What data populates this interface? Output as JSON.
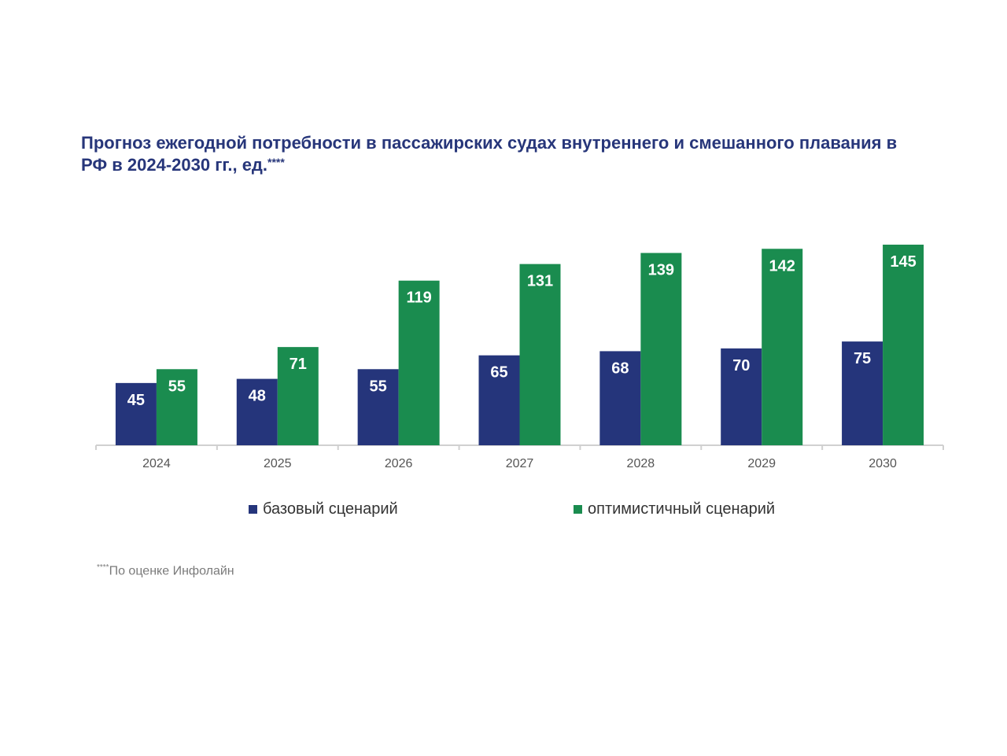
{
  "title": {
    "text": "Прогноз ежегодной потребности в пассажирских судах внутреннего и смешанного плавания в РФ в 2024-2030 гг., ед.",
    "marker": "****"
  },
  "footnote": {
    "marker": "****",
    "text": "По оценке Инфолайн"
  },
  "colors": {
    "base": "#25357b",
    "optimistic": "#1a8c4f",
    "axis": "#d0d0d0",
    "title": "#27367a"
  },
  "chart_data": {
    "type": "bar",
    "title": "Прогноз ежегодной потребности в пассажирских судах внутреннего и смешанного плавания в РФ в 2024-2030 гг., ед.****",
    "xlabel": "",
    "ylabel": "",
    "categories": [
      "2024",
      "2025",
      "2026",
      "2027",
      "2028",
      "2029",
      "2030"
    ],
    "series": [
      {
        "name": "базовый сценарий",
        "color": "#25357b",
        "values": [
          45,
          48,
          55,
          65,
          68,
          70,
          75
        ]
      },
      {
        "name": "оптимистичный сценарий",
        "color": "#1a8c4f",
        "values": [
          55,
          71,
          119,
          131,
          139,
          142,
          145
        ]
      }
    ],
    "ylim": [
      0,
      145
    ],
    "grid": false,
    "legend": "bottom",
    "data_labels": true
  }
}
